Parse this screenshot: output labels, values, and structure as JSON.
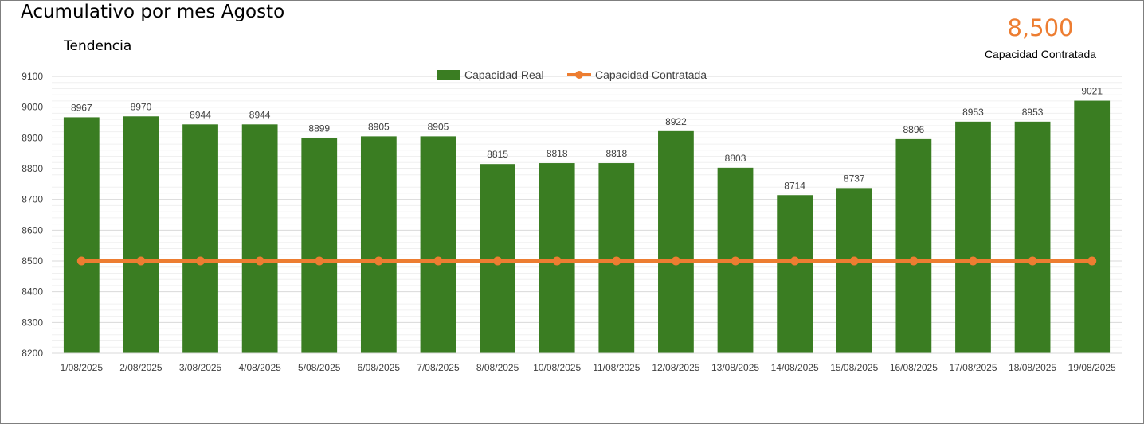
{
  "header": {
    "title": "Acumulativo por mes Agosto",
    "subtitle": "Tendencia"
  },
  "kpi": {
    "value": "8,500",
    "label": "Capacidad Contratada",
    "color": "#ed7d31"
  },
  "chart_data": {
    "type": "bar",
    "categories": [
      "1/08/2025",
      "2/08/2025",
      "3/08/2025",
      "4/08/2025",
      "5/08/2025",
      "6/08/2025",
      "7/08/2025",
      "8/08/2025",
      "10/08/2025",
      "11/08/2025",
      "12/08/2025",
      "13/08/2025",
      "14/08/2025",
      "15/08/2025",
      "16/08/2025",
      "17/08/2025",
      "18/08/2025",
      "19/08/2025"
    ],
    "series": [
      {
        "name": "Capacidad Real",
        "type": "bar",
        "color": "#3a7d22",
        "values": [
          8967,
          8970,
          8944,
          8944,
          8899,
          8905,
          8905,
          8815,
          8818,
          8818,
          8922,
          8803,
          8714,
          8737,
          8896,
          8953,
          8953,
          9021
        ]
      },
      {
        "name": "Capacidad Contratada",
        "type": "line",
        "color": "#ed7d31",
        "values": [
          8500,
          8500,
          8500,
          8500,
          8500,
          8500,
          8500,
          8500,
          8500,
          8500,
          8500,
          8500,
          8500,
          8500,
          8500,
          8500,
          8500,
          8500
        ]
      }
    ],
    "yticks": [
      8200,
      8300,
      8400,
      8500,
      8600,
      8700,
      8800,
      8900,
      9000,
      9100
    ],
    "ylim": [
      8200,
      9100
    ],
    "data_labels": true,
    "grid": true,
    "legend_position": "top"
  }
}
